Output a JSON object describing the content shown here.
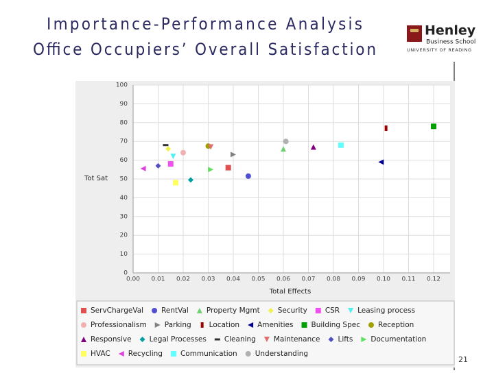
{
  "chart_data": {
    "type": "scatter",
    "title": "Importance-Performance Analysis",
    "subtitle": "Office Occupiers’ Overall Satisfaction",
    "xlabel": "Total Effects",
    "ylabel": "Tot Sat",
    "xlim": [
      0,
      0.12
    ],
    "ylim": [
      0,
      100
    ],
    "xticks": [
      {
        "value": 0,
        "label": "0.00"
      },
      {
        "value": 0.01,
        "label": "0.01"
      },
      {
        "value": 0.02,
        "label": "0.02"
      },
      {
        "value": 0.03,
        "label": "0.03"
      },
      {
        "value": 0.04,
        "label": "0.04"
      },
      {
        "value": 0.05,
        "label": "0.05"
      },
      {
        "value": 0.06,
        "label": "0.06"
      },
      {
        "value": 0.07,
        "label": "0.07"
      },
      {
        "value": 0.08,
        "label": "0.08"
      },
      {
        "value": 0.09,
        "label": "0.09"
      },
      {
        "value": 0.1,
        "label": "0.10"
      },
      {
        "value": 0.11,
        "label": "0.11"
      },
      {
        "value": 0.12,
        "label": "0.12"
      }
    ],
    "yticks": [
      0,
      10,
      20,
      30,
      40,
      50,
      60,
      70,
      80,
      90,
      100
    ],
    "grid": true,
    "series": [
      {
        "name": "ServChargeVal",
        "color": "#e05050",
        "marker": "square",
        "x": [
          0.038
        ],
        "values": [
          56
        ]
      },
      {
        "name": "RentVal",
        "color": "#5050d0",
        "marker": "circle",
        "x": [
          0.046
        ],
        "values": [
          51.5
        ]
      },
      {
        "name": "Property Mgmt",
        "color": "#70d070",
        "marker": "triangle-up",
        "x": [
          0.06
        ],
        "values": [
          66
        ]
      },
      {
        "name": "Security",
        "color": "#f0f050",
        "marker": "diamond",
        "x": [
          0.014
        ],
        "values": [
          66
        ]
      },
      {
        "name": "CSR",
        "color": "#f050f0",
        "marker": "square",
        "x": [
          0.015
        ],
        "values": [
          58
        ]
      },
      {
        "name": "Leasing process",
        "color": "#50f0f0",
        "marker": "triangle-down",
        "x": [
          0.016
        ],
        "values": [
          62
        ]
      },
      {
        "name": "Professionalism",
        "color": "#f0b0b0",
        "marker": "circle",
        "x": [
          0.02
        ],
        "values": [
          64
        ]
      },
      {
        "name": "Parking",
        "color": "#808080",
        "marker": "triangle-right",
        "x": [
          0.04
        ],
        "values": [
          63
        ]
      },
      {
        "name": "Location",
        "color": "#a00000",
        "marker": "bar",
        "x": [
          0.101
        ],
        "values": [
          77
        ]
      },
      {
        "name": "Amenities",
        "color": "#000090",
        "marker": "triangle-left",
        "x": [
          0.099
        ],
        "values": [
          59
        ]
      },
      {
        "name": "Building Spec",
        "color": "#00a000",
        "marker": "square",
        "x": [
          0.12
        ],
        "values": [
          78
        ]
      },
      {
        "name": "Reception",
        "color": "#a0a000",
        "marker": "circle",
        "x": [
          0.03
        ],
        "values": [
          67.5
        ]
      },
      {
        "name": "Responsive",
        "color": "#800080",
        "marker": "triangle-up",
        "x": [
          0.072
        ],
        "values": [
          67
        ]
      },
      {
        "name": "Legal Processes",
        "color": "#00a0a0",
        "marker": "diamond",
        "x": [
          0.023
        ],
        "values": [
          49.5
        ]
      },
      {
        "name": "Cleaning",
        "color": "#303030",
        "marker": "dash",
        "x": [
          0.013
        ],
        "values": [
          68
        ]
      },
      {
        "name": "Maintenance",
        "color": "#e07070",
        "marker": "triangle-down",
        "x": [
          0.031
        ],
        "values": [
          67
        ]
      },
      {
        "name": "Lifts",
        "color": "#5050c0",
        "marker": "diamond",
        "x": [
          0.01
        ],
        "values": [
          57
        ]
      },
      {
        "name": "Documentation",
        "color": "#60e060",
        "marker": "triangle-right",
        "x": [
          0.031
        ],
        "values": [
          55
        ]
      },
      {
        "name": "HVAC",
        "color": "#ffff60",
        "marker": "square",
        "x": [
          0.017
        ],
        "values": [
          48
        ]
      },
      {
        "name": "Recycling",
        "color": "#e040e0",
        "marker": "triangle-left",
        "x": [
          0.004
        ],
        "values": [
          55.5
        ]
      },
      {
        "name": "Communication",
        "color": "#60ffff",
        "marker": "square",
        "x": [
          0.083
        ],
        "values": [
          68
        ]
      },
      {
        "name": "Understanding",
        "color": "#b0b0b0",
        "marker": "circle",
        "x": [
          0.061
        ],
        "values": [
          70
        ]
      }
    ]
  },
  "logo": {
    "name": "Henley",
    "school": "Business School",
    "university": "UNIVERSITY OF READING"
  },
  "page_number": "21"
}
